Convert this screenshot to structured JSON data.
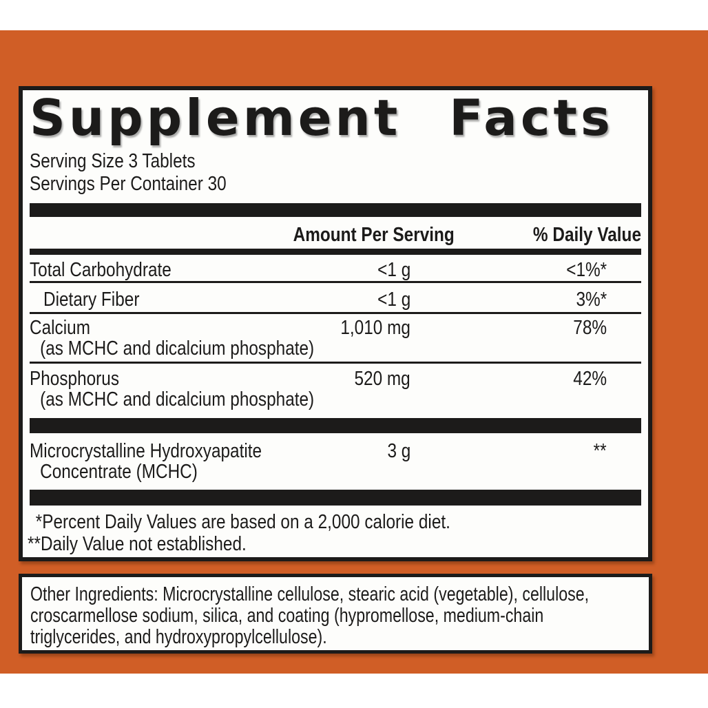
{
  "label": {
    "title": "Supplement Facts",
    "serving_size": "Serving Size 3 Tablets",
    "servings_per_container": "Servings Per Container 30",
    "columns": {
      "amount": "Amount Per Serving",
      "daily_value": "% Daily Value"
    },
    "rows": [
      {
        "name": "Total Carbohydrate",
        "amount": "<1 g",
        "dv": "<1%*"
      },
      {
        "name": "Dietary Fiber",
        "amount": "<1 g",
        "dv": "3%*"
      },
      {
        "name": "Calcium",
        "sub": "(as MCHC and dicalcium phosphate)",
        "amount": "1,010 mg",
        "dv": "78%"
      },
      {
        "name": "Phosphorus",
        "sub": "(as MCHC and dicalcium phosphate)",
        "amount": "520 mg",
        "dv": "42%"
      },
      {
        "name": "Microcrystalline Hydroxyapatite",
        "sub": "Concentrate (MCHC)",
        "amount": "3 g",
        "dv": "**"
      }
    ],
    "footnotes": [
      "*Percent Daily Values are based on a 2,000 calorie diet.",
      "**Daily Value not established."
    ],
    "other_ingredients": {
      "lines": [
        "Other Ingredients: Microcrystalline cellulose, stearic acid (vegetable), cellulose,",
        "croscarmellose sodium, silica, and coating (hypromellose, medium-chain",
        "triglycerides, and hydroxypropylcellulose)."
      ]
    },
    "colors": {
      "background_orange": "#d05e26",
      "bar_black": "#1c1b1a",
      "panel_white": "#fdfdfb"
    }
  }
}
